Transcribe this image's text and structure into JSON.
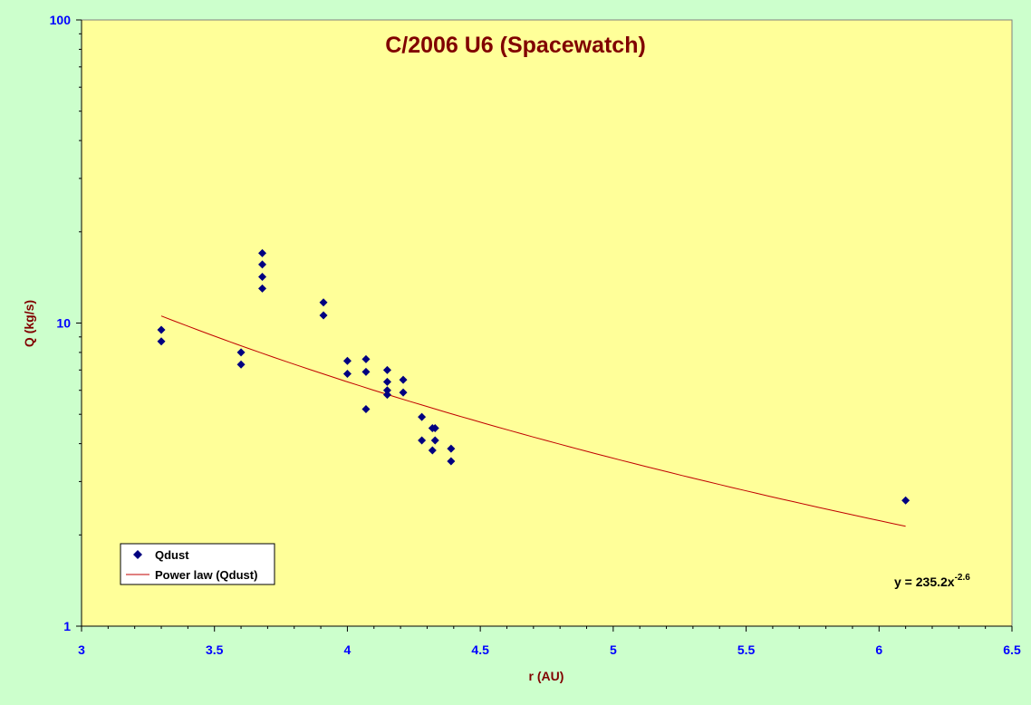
{
  "chart_data": {
    "type": "scatter",
    "title": "C/2006 U6 (Spacewatch)",
    "xlabel": "r (AU)",
    "ylabel": "Q (kg/s)",
    "xlim": [
      3,
      6.5
    ],
    "ylim": [
      1,
      100
    ],
    "yscale": "log",
    "x_ticks": [
      "3",
      "3.5",
      "4",
      "4.5",
      "5",
      "5.5",
      "6",
      "6.5"
    ],
    "y_ticks": [
      "1",
      "10",
      "100"
    ],
    "grid": false,
    "legend_position": "bottom-left",
    "series": [
      {
        "name": "Qdust",
        "marker": "diamond",
        "color": "#000080",
        "x": [
          3.3,
          3.3,
          3.6,
          3.6,
          3.68,
          3.68,
          3.68,
          3.68,
          3.91,
          3.91,
          4.0,
          4.0,
          4.07,
          4.07,
          4.07,
          4.15,
          4.15,
          4.15,
          4.15,
          4.21,
          4.21,
          4.28,
          4.28,
          4.32,
          4.33,
          4.32,
          4.33,
          4.39,
          4.39,
          6.1
        ],
        "y": [
          9.5,
          8.7,
          8.0,
          7.3,
          17.0,
          15.6,
          14.2,
          13.0,
          11.7,
          10.6,
          7.5,
          6.8,
          7.6,
          6.9,
          5.2,
          7.0,
          6.4,
          6.0,
          5.8,
          6.5,
          5.9,
          4.9,
          4.1,
          4.5,
          4.5,
          3.8,
          4.1,
          3.85,
          3.5,
          2.6
        ]
      },
      {
        "name": "Power law (Qdust)",
        "type": "line",
        "color": "#c00000",
        "coefficient": 235.2,
        "exponent": -2.6,
        "x_range": [
          3.3,
          6.1
        ]
      }
    ],
    "annotations": {
      "equation_base": "y = 235.2x",
      "equation_exponent": "-2.6"
    }
  }
}
